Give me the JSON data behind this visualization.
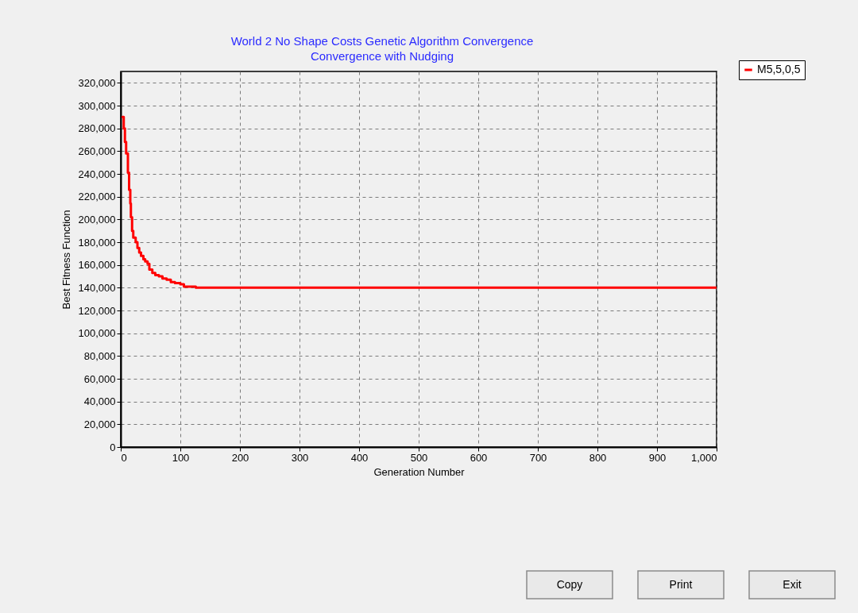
{
  "chart_data": {
    "type": "step",
    "title": "World 2 No Shape Costs Genetic Algorithm Convergence",
    "subtitle": "Convergence with Nudging",
    "xlabel": "Generation Number",
    "ylabel": "Best Fitness Function",
    "series": [
      {
        "name": "M5,5,0,5",
        "color": "#ff0000",
        "x": [
          3,
          5,
          7,
          9,
          12,
          14,
          16,
          17,
          19,
          21,
          25,
          28,
          31,
          34,
          38,
          41,
          45,
          48,
          53,
          58,
          64,
          70,
          77,
          84,
          91,
          100,
          106,
          126,
          1000
        ],
        "values": [
          290000,
          280000,
          268000,
          258000,
          241000,
          226000,
          214000,
          202000,
          190000,
          184000,
          180000,
          175000,
          171000,
          168000,
          165000,
          163000,
          161000,
          156000,
          153000,
          151000,
          150000,
          148000,
          147000,
          145000,
          144000,
          143000,
          141000,
          140000,
          140000
        ]
      }
    ],
    "xlim": [
      0,
      1000
    ],
    "ylim": [
      0,
      330000
    ],
    "xticks": [
      0,
      100,
      200,
      300,
      400,
      500,
      600,
      700,
      800,
      900,
      {
        "value": 1000,
        "label": "1,000"
      }
    ],
    "yticks": [
      0,
      {
        "value": 20000,
        "label": "20,000"
      },
      {
        "value": 40000,
        "label": "40,000"
      },
      {
        "value": 60000,
        "label": "60,000"
      },
      {
        "value": 80000,
        "label": "80,000"
      },
      {
        "value": 100000,
        "label": "100,000"
      },
      {
        "value": 120000,
        "label": "120,000"
      },
      {
        "value": 140000,
        "label": "140,000"
      },
      {
        "value": 160000,
        "label": "160,000"
      },
      {
        "value": 180000,
        "label": "180,000"
      },
      {
        "value": 200000,
        "label": "200,000"
      },
      {
        "value": 220000,
        "label": "220,000"
      },
      {
        "value": 240000,
        "label": "240,000"
      },
      {
        "value": 260000,
        "label": "260,000"
      },
      {
        "value": 280000,
        "label": "280,000"
      },
      {
        "value": 300000,
        "label": "300,000"
      },
      {
        "value": 320000,
        "label": "320,000"
      }
    ],
    "grid": true,
    "legend": "top right",
    "annotations": [
      "Copy",
      "Print",
      "Exit"
    ]
  }
}
